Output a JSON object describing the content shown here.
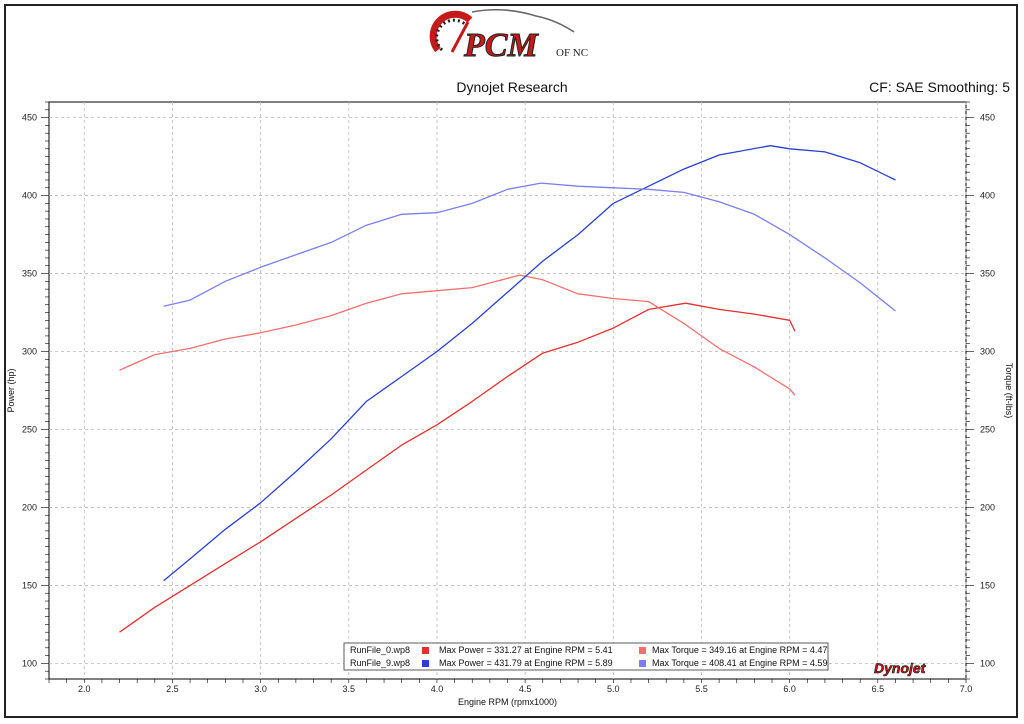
{
  "header": {
    "logo_text": "PCM",
    "logo_sub": "OF NC",
    "title": "Dynojet Research",
    "cf_text": "CF: SAE Smoothing: 5"
  },
  "brand_mark": "Dynojet",
  "colors": {
    "run0_power": "#e03030",
    "run0_torque": "#f07070",
    "run9_power": "#2a3fd0",
    "run9_torque": "#7a7ff0"
  },
  "legend": [
    {
      "file": "RunFile_0.wp8",
      "power": "Max Power = 331.27 at Engine RPM = 5.41",
      "torque": "Max Torque = 349.16 at Engine RPM = 4.47"
    },
    {
      "file": "RunFile_9.wp8",
      "power": "Max Power = 431.79 at Engine RPM = 5.89",
      "torque": "Max Torque = 408.41 at Engine RPM = 4.59"
    }
  ],
  "chart_data": {
    "type": "line",
    "title": "Dynojet Research",
    "xlabel": "Engine RPM (rpmx1000)",
    "ylabel": "Power (hp)",
    "y2label": "Torque (ft-lbs)",
    "xlim": [
      1.8,
      7.0
    ],
    "ylim": [
      90,
      460
    ],
    "xticks": [
      2.0,
      2.5,
      3.0,
      3.5,
      4.0,
      4.5,
      5.0,
      5.5,
      6.0,
      6.5,
      7.0
    ],
    "yticks": [
      100,
      150,
      200,
      250,
      300,
      350,
      400,
      450
    ],
    "grid": true,
    "series": [
      {
        "name": "RunFile_0.wp8",
        "quantity": "power",
        "color": "#e03030",
        "x": [
          2.2,
          2.4,
          2.6,
          2.8,
          3.0,
          3.2,
          3.4,
          3.6,
          3.8,
          4.0,
          4.2,
          4.4,
          4.6,
          4.8,
          5.0,
          5.2,
          5.41,
          5.6,
          5.8,
          6.0,
          6.03
        ],
        "y": [
          120,
          136,
          150,
          164,
          178,
          193,
          208,
          224,
          240,
          253,
          268,
          284,
          299,
          306,
          315,
          327,
          331,
          327,
          324,
          320,
          313
        ]
      },
      {
        "name": "RunFile_0.wp8",
        "quantity": "torque",
        "color": "#f07070",
        "x": [
          2.2,
          2.4,
          2.6,
          2.8,
          3.0,
          3.2,
          3.4,
          3.6,
          3.8,
          4.0,
          4.2,
          4.47,
          4.6,
          4.8,
          5.0,
          5.2,
          5.4,
          5.6,
          5.8,
          6.0,
          6.03
        ],
        "y": [
          288,
          298,
          302,
          308,
          312,
          317,
          323,
          331,
          337,
          339,
          341,
          349,
          346,
          337,
          334,
          332,
          318,
          302,
          290,
          276,
          272
        ]
      },
      {
        "name": "RunFile_9.wp8",
        "quantity": "power",
        "color": "#2a3fd0",
        "x": [
          2.45,
          2.6,
          2.8,
          3.0,
          3.2,
          3.4,
          3.6,
          3.8,
          4.0,
          4.2,
          4.4,
          4.6,
          4.8,
          5.0,
          5.2,
          5.4,
          5.6,
          5.89,
          6.0,
          6.2,
          6.4,
          6.6
        ],
        "y": [
          153,
          167,
          186,
          203,
          223,
          244,
          268,
          284,
          300,
          318,
          338,
          358,
          375,
          395,
          406,
          417,
          426,
          432,
          430,
          428,
          421,
          410
        ]
      },
      {
        "name": "RunFile_9.wp8",
        "quantity": "torque",
        "color": "#7a7ff0",
        "x": [
          2.45,
          2.6,
          2.8,
          3.0,
          3.2,
          3.4,
          3.6,
          3.8,
          4.0,
          4.2,
          4.4,
          4.59,
          4.8,
          5.0,
          5.2,
          5.4,
          5.6,
          5.8,
          6.0,
          6.2,
          6.4,
          6.6
        ],
        "y": [
          329,
          333,
          345,
          354,
          362,
          370,
          381,
          388,
          389,
          395,
          404,
          408,
          406,
          405,
          404,
          402,
          396,
          388,
          375,
          360,
          344,
          326
        ]
      }
    ]
  }
}
